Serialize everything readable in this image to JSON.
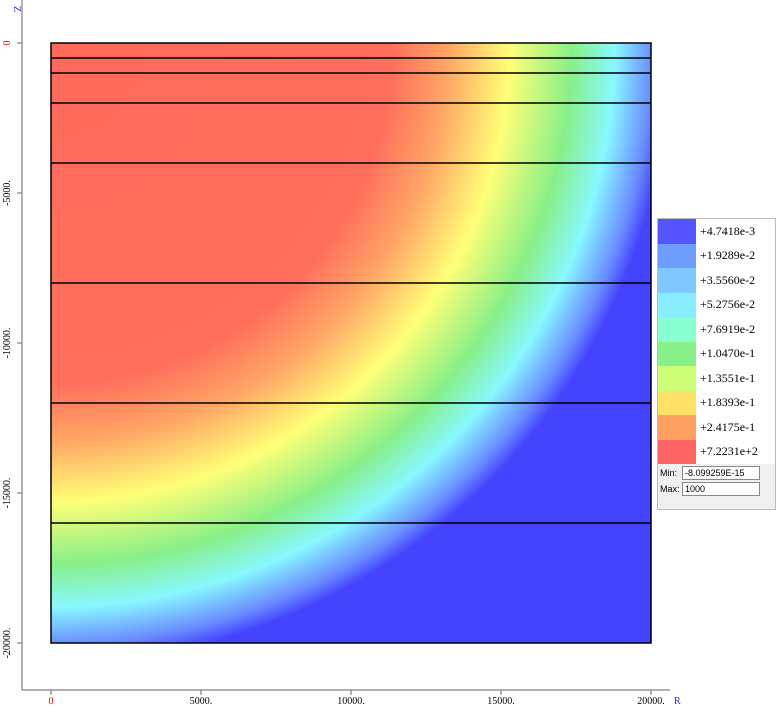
{
  "chart_data": {
    "type": "contour",
    "x_label": "R",
    "y_label": "Z",
    "xlim": [
      -1000,
      21000
    ],
    "ylim": [
      -21500,
      1500
    ],
    "xticks": [
      0,
      {
        "value": 5000,
        "label": "5000."
      },
      {
        "value": 10000,
        "label": "10000."
      },
      {
        "value": 15000,
        "label": "15000."
      },
      {
        "value": 20000,
        "label": "20000."
      }
    ],
    "yticks": [
      0,
      {
        "value": -5000,
        "label": "-5000."
      },
      {
        "value": -10000,
        "label": "-10000."
      },
      {
        "value": -15000,
        "label": "-15000."
      },
      {
        "value": -20000,
        "label": "-20000."
      }
    ],
    "domain_r": [
      0,
      20000
    ],
    "boundaries": [
      0,
      -500,
      -1000,
      -2000,
      -4000,
      -8000,
      -12000,
      -16000,
      -20000
    ],
    "legend": [
      {
        "label": "+4.7418e-3",
        "color": "#5555ff"
      },
      {
        "label": "+1.9289e-2",
        "color": "#6e9cff"
      },
      {
        "label": "+3.5560e-2",
        "color": "#80c8ff"
      },
      {
        "label": "+5.2756e-2",
        "color": "#88eeff"
      },
      {
        "label": "+7.6919e-2",
        "color": "#88ffd0"
      },
      {
        "label": "+1.0470e-1",
        "color": "#88f088"
      },
      {
        "label": "+1.3551e-1",
        "color": "#ccff77"
      },
      {
        "label": "+1.8393e-1",
        "color": "#ffe066"
      },
      {
        "label": "+2.4175e-1",
        "color": "#ffa060"
      },
      {
        "label": "+7.2231e+2",
        "color": "#ff6464"
      }
    ],
    "min_label": "Min:",
    "min_value": "-8.099259E-15",
    "max_label": "Max:",
    "max_value": "1000"
  }
}
